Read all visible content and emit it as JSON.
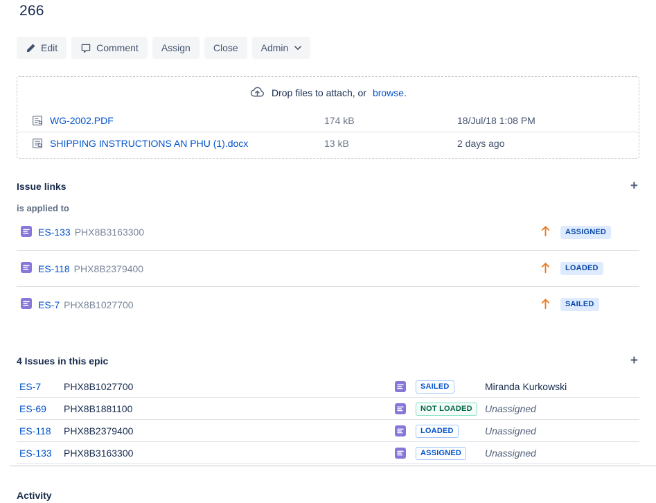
{
  "page": {
    "title": "266"
  },
  "toolbar": {
    "buttons": [
      {
        "label": "Edit",
        "icon": "pencil-icon"
      },
      {
        "label": "Comment",
        "icon": "comment-icon"
      },
      {
        "label": "Assign",
        "icon": null
      },
      {
        "label": "Close",
        "icon": null
      },
      {
        "label": "Admin",
        "icon": null,
        "dropdown": true
      }
    ]
  },
  "attachments": {
    "dropzone_text": "Drop files to attach, or",
    "dropzone_link": "browse.",
    "files": [
      {
        "name": "WG-2002.PDF",
        "size": "174 kB",
        "date": "18/Jul/18 1:08 PM",
        "icon": "pdf-file-icon"
      },
      {
        "name": "SHIPPING INSTRUCTIONS AN PHU (1).docx",
        "size": "13 kB",
        "date": "2 days ago",
        "icon": "docx-file-icon"
      }
    ]
  },
  "issue_links": {
    "title": "Issue links",
    "relation": "is applied to",
    "links": [
      {
        "key": "ES-133",
        "summary": "PHX8B3163300",
        "priority": "up",
        "status": "ASSIGNED",
        "status_style": "filled-blue"
      },
      {
        "key": "ES-118",
        "summary": "PHX8B2379400",
        "priority": "up",
        "status": "LOADED",
        "status_style": "filled-blue"
      },
      {
        "key": "ES-7",
        "summary": "PHX8B1027700",
        "priority": "up",
        "status": "SAILED",
        "status_style": "filled-blue"
      }
    ]
  },
  "epic_issues": {
    "title": "4 Issues in this epic",
    "rows": [
      {
        "key": "ES-7",
        "summary": "PHX8B1027700",
        "status": "SAILED",
        "status_style": "outline-blue",
        "assignee": "Miranda Kurkowski",
        "unassigned": false
      },
      {
        "key": "ES-69",
        "summary": "PHX8B1881100",
        "status": "NOT LOADED",
        "status_style": "outline-green",
        "assignee": "Unassigned",
        "unassigned": true
      },
      {
        "key": "ES-118",
        "summary": "PHX8B2379400",
        "status": "LOADED",
        "status_style": "outline-blue",
        "assignee": "Unassigned",
        "unassigned": true
      },
      {
        "key": "ES-133",
        "summary": "PHX8B3163300",
        "status": "ASSIGNED",
        "status_style": "outline-blue",
        "assignee": "Unassigned",
        "unassigned": true
      }
    ]
  },
  "activity": {
    "title": "Activity"
  },
  "icons": {
    "plus": "+",
    "chevron_down": "chevron-down-icon",
    "priority_up": "arrow-up-icon",
    "issue_type": "purple-task-icon",
    "cloud": "cloud-upload-icon"
  },
  "colors": {
    "link": "#0052CC",
    "heading": "#172B4D",
    "button_bg": "#F4F5F7",
    "button_text": "#42526E",
    "muted_text": "#6B778C",
    "separator": "#DFE1E6",
    "dashed_border": "#C1C7D0",
    "lozenge_filled_bg": "#DEEBFF",
    "lozenge_filled_text": "#0747A6",
    "lozenge_outline_blue_border": "#A0C4FF",
    "lozenge_outline_green_border": "#79E2B8",
    "lozenge_green_text": "#006644",
    "priority_arrow": "#EA7D24",
    "issue_type_purple": "#8777D9"
  }
}
